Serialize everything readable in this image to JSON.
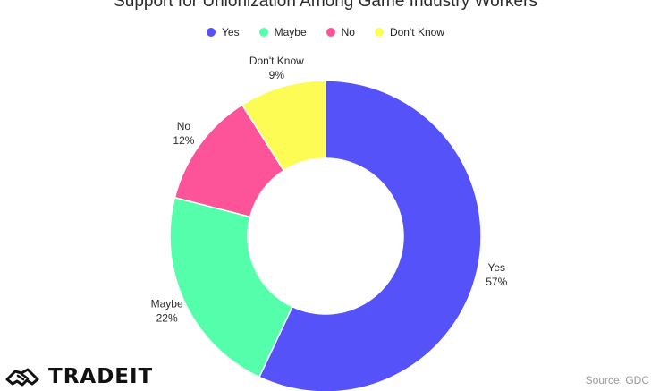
{
  "chart_data": {
    "type": "pie",
    "title": "Support for Unionization Among Game Industry Workers",
    "donut": true,
    "legend_position": "top",
    "series": [
      {
        "name": "Yes",
        "value": 57,
        "label": "57%",
        "color": "#5552fa"
      },
      {
        "name": "Maybe",
        "value": 22,
        "label": "22%",
        "color": "#55feaa"
      },
      {
        "name": "No",
        "value": 12,
        "label": "12%",
        "color": "#fd5399"
      },
      {
        "name": "Don't Know",
        "value": 9,
        "label": "9%",
        "color": "#fdfc55"
      }
    ]
  },
  "branding": {
    "logo_text": "TRADEIT",
    "logo_icon": "handshake-icon"
  },
  "source": "Source: GDC"
}
